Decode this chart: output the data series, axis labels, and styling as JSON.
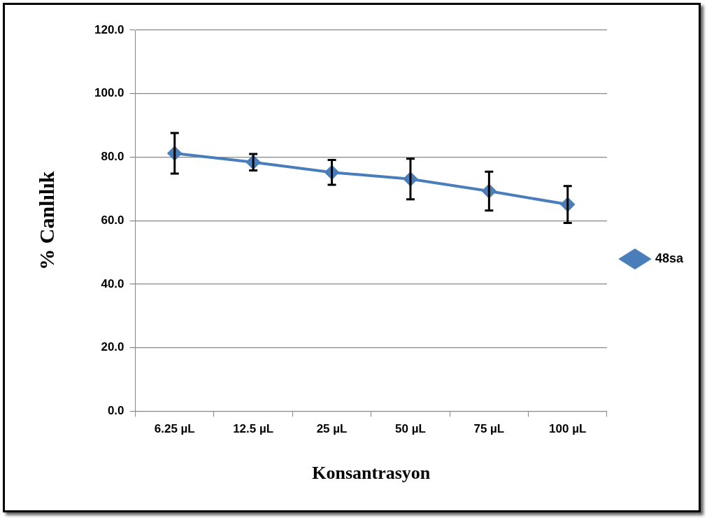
{
  "chart_data": {
    "type": "line",
    "xlabel": "Konsantrasyon",
    "ylabel": "% Canlılık",
    "categories": [
      "6.25 µL",
      "12.5 µL",
      "25 µL",
      "50 µL",
      "75 µL",
      "100 µL"
    ],
    "series": [
      {
        "name": "48sa",
        "color": "#4a7ebb",
        "values": [
          81.2,
          78.4,
          75.2,
          73.1,
          69.3,
          65.1
        ],
        "errors": [
          6.4,
          2.6,
          3.9,
          6.4,
          6.1,
          5.8
        ]
      }
    ],
    "ylim": [
      0,
      120
    ],
    "yticks": [
      {
        "value": 0,
        "label": "0.0"
      },
      {
        "value": 20,
        "label": "20.0"
      },
      {
        "value": 40,
        "label": "40.0"
      },
      {
        "value": 60,
        "label": "60.0"
      },
      {
        "value": 80,
        "label": "80.0"
      },
      {
        "value": 100,
        "label": "100.0"
      },
      {
        "value": 120,
        "label": "120.0"
      }
    ],
    "grid": "y",
    "legend": "right",
    "marker": "diamond",
    "line_style": "solid"
  }
}
